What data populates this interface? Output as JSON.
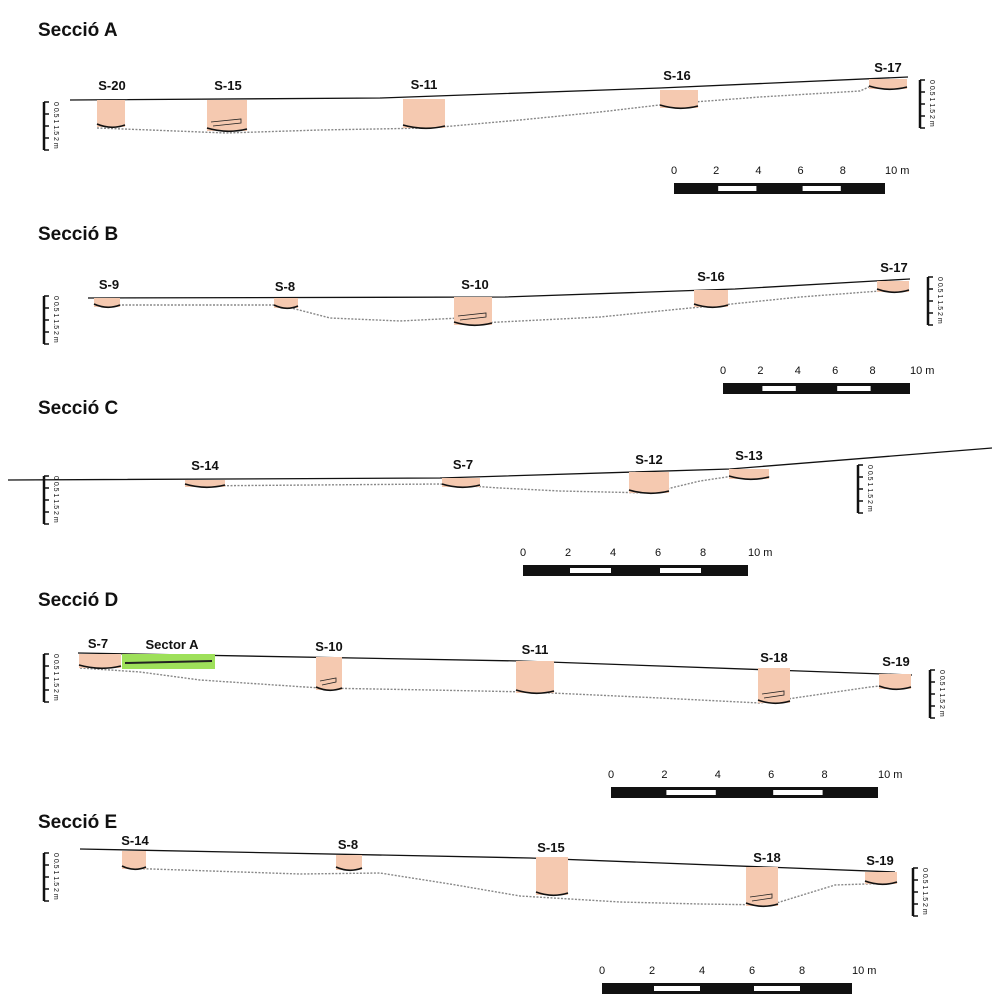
{
  "sections": [
    {
      "title": "Secció A",
      "soundings": [
        {
          "label": "S-20"
        },
        {
          "label": "S-15"
        },
        {
          "label": "S-11"
        },
        {
          "label": "S-16"
        },
        {
          "label": "S-17"
        }
      ],
      "scale_ticks": [
        "0",
        "2",
        "4",
        "6",
        "8",
        "10 m"
      ],
      "vertical_scale": "0 0.5 1 1.5 2 m"
    },
    {
      "title": "Secció B",
      "soundings": [
        {
          "label": "S-9"
        },
        {
          "label": "S-8"
        },
        {
          "label": "S-10"
        },
        {
          "label": "S-16"
        },
        {
          "label": "S-17"
        }
      ],
      "scale_ticks": [
        "0",
        "2",
        "4",
        "6",
        "8",
        "10 m"
      ],
      "vertical_scale": "0 0.5 1 1.5 2 m"
    },
    {
      "title": "Secció C",
      "soundings": [
        {
          "label": "S-14"
        },
        {
          "label": "S-7"
        },
        {
          "label": "S-12"
        },
        {
          "label": "S-13"
        }
      ],
      "scale_ticks": [
        "0",
        "2",
        "4",
        "6",
        "8",
        "10 m"
      ],
      "vertical_scale": "0 0.5 1 1.5 2 m"
    },
    {
      "title": "Secció D",
      "soundings": [
        {
          "label": "S-7"
        },
        {
          "label": "S-10"
        },
        {
          "label": "S-11"
        },
        {
          "label": "S-18"
        },
        {
          "label": "S-19"
        }
      ],
      "sector_label": "Sector A",
      "scale_ticks": [
        "0",
        "2",
        "4",
        "6",
        "8",
        "10 m"
      ],
      "vertical_scale": "0 0.5 1 1.5 2 m"
    },
    {
      "title": "Secció E",
      "soundings": [
        {
          "label": "S-14"
        },
        {
          "label": "S-8"
        },
        {
          "label": "S-15"
        },
        {
          "label": "S-18"
        },
        {
          "label": "S-19"
        }
      ],
      "scale_ticks": [
        "0",
        "2",
        "4",
        "6",
        "8",
        "10 m"
      ],
      "vertical_scale": "0 0.5 1 1.5 2 m"
    }
  ],
  "colors": {
    "sounding_fill": "#f5c9b0",
    "sector_fill": "#9ee05a",
    "surface_line": "#111111",
    "base_line": "#888888"
  }
}
